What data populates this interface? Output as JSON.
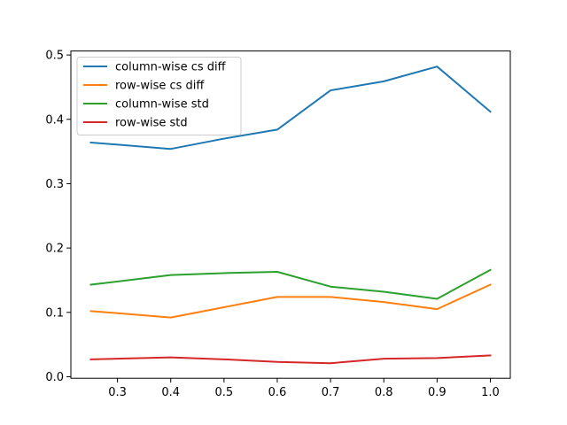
{
  "chart_data": {
    "type": "line",
    "title": "",
    "xlabel": "",
    "ylabel": "",
    "x": [
      0.25,
      0.4,
      0.5,
      0.6,
      0.7,
      0.8,
      0.9,
      1.0
    ],
    "xlim": [
      0.2125,
      1.0375
    ],
    "ylim": [
      -0.0024,
      0.5062
    ],
    "x_ticks": [
      0.3,
      0.4,
      0.5,
      0.6,
      0.7,
      0.8,
      0.9,
      1.0
    ],
    "x_tick_labels": [
      "0.3",
      "0.4",
      "0.5",
      "0.6",
      "0.7",
      "0.8",
      "0.9",
      "1.0"
    ],
    "y_ticks": [
      0.0,
      0.1,
      0.2,
      0.3,
      0.4,
      0.5
    ],
    "y_tick_labels": [
      "0.0",
      "0.1",
      "0.2",
      "0.3",
      "0.4",
      "0.5"
    ],
    "grid": false,
    "legend_position": "top-left",
    "series": [
      {
        "name": "column-wise cs diff",
        "color": "#1f77b4",
        "values": [
          0.364,
          0.354,
          0.37,
          0.384,
          0.445,
          0.459,
          0.482,
          0.412
        ]
      },
      {
        "name": "row-wise cs diff",
        "color": "#ff7f0e",
        "values": [
          0.102,
          0.092,
          0.108,
          0.124,
          0.124,
          0.116,
          0.105,
          0.143
        ]
      },
      {
        "name": "column-wise std",
        "color": "#2ca02c",
        "values": [
          0.143,
          0.158,
          0.161,
          0.163,
          0.14,
          0.132,
          0.121,
          0.166
        ]
      },
      {
        "name": "row-wise std",
        "color": "#d62728",
        "values": [
          0.027,
          0.03,
          0.027,
          0.023,
          0.021,
          0.028,
          0.029,
          0.033
        ]
      }
    ]
  }
}
